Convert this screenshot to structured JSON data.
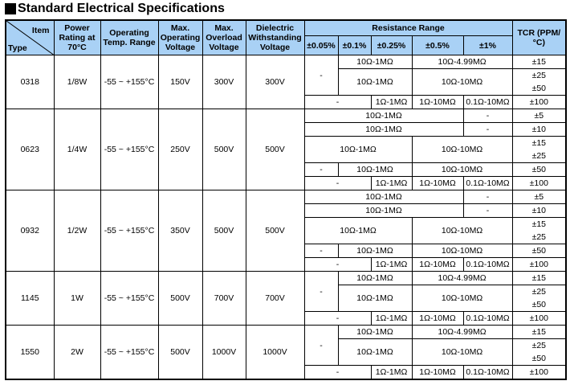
{
  "title": "Standard Electrical Specifications",
  "header": {
    "item": "Item",
    "type": "Type",
    "power": "Power Rating at 70°C",
    "temp": "Operating Temp. Range",
    "max_op": "Max. Operating Voltage",
    "max_ol": "Max. Overload Voltage",
    "dielectric": "Dielectric Withstanding Voltage",
    "resistance": "Resistance Range",
    "tolerances": [
      "±0.05%",
      "±0.1%",
      "±0.25%",
      "±0.5%",
      "±1%"
    ],
    "tcr": "TCR (PPM/°C)"
  },
  "colors": {
    "header_bg": "#a9d1f5"
  },
  "groups": [
    {
      "type": "0318",
      "power": "1/8W",
      "temp": "-55 ~ +155°C",
      "max_op": "150V",
      "max_ol": "300V",
      "dielectric": "300V",
      "layout": "A",
      "rows": [
        {
          "cells": [
            {
              "t": "-",
              "c": 1,
              "r": 2
            },
            {
              "t": "10Ω-1MΩ",
              "c": 2
            },
            {
              "t": "10Ω-4.99MΩ",
              "c": 2
            }
          ],
          "tcr": [
            "±15"
          ]
        },
        {
          "cells": [
            {
              "t": "10Ω-1MΩ",
              "c": 2
            },
            {
              "t": "10Ω-10MΩ",
              "c": 2
            }
          ],
          "tcr": [
            "±25",
            "±50"
          ]
        },
        {
          "cells": [
            {
              "t": "-",
              "c": 2
            },
            {
              "t": "1Ω-1MΩ",
              "c": 1
            },
            {
              "t": "1Ω-10MΩ",
              "c": 1
            },
            {
              "t": "0.1Ω-10MΩ",
              "c": 1
            }
          ],
          "tcr": [
            "±100"
          ]
        }
      ]
    },
    {
      "type": "0623",
      "power": "1/4W",
      "temp": "-55 ~ +155°C",
      "max_op": "250V",
      "max_ol": "500V",
      "dielectric": "500V",
      "layout": "B",
      "rows": [
        {
          "cells": [
            {
              "t": "10Ω-1MΩ",
              "c": 4
            },
            {
              "t": "-",
              "c": 1
            }
          ],
          "tcr": [
            "±5"
          ]
        },
        {
          "cells": [
            {
              "t": "10Ω-1MΩ",
              "c": 4
            },
            {
              "t": "-",
              "c": 1
            }
          ],
          "tcr": [
            "±10"
          ]
        },
        {
          "cells": [
            {
              "t": "10Ω-1MΩ",
              "c": 3
            },
            {
              "t": "10Ω-10MΩ",
              "c": 2
            }
          ],
          "tcr": [
            "±15",
            "±25"
          ]
        },
        {
          "cells": [
            {
              "t": "-",
              "c": 1
            },
            {
              "t": "10Ω-1MΩ",
              "c": 2
            },
            {
              "t": "10Ω-10MΩ",
              "c": 2
            }
          ],
          "tcr": [
            "±50"
          ]
        },
        {
          "cells": [
            {
              "t": "-",
              "c": 2
            },
            {
              "t": "1Ω-1MΩ",
              "c": 1
            },
            {
              "t": "1Ω-10MΩ",
              "c": 1
            },
            {
              "t": "0.1Ω-10MΩ",
              "c": 1
            }
          ],
          "tcr": [
            "±100"
          ]
        }
      ]
    },
    {
      "type": "0932",
      "power": "1/2W",
      "temp": "-55 ~ +155°C",
      "max_op": "350V",
      "max_ol": "500V",
      "dielectric": "500V",
      "layout": "B",
      "rows": [
        {
          "cells": [
            {
              "t": "10Ω-1MΩ",
              "c": 4
            },
            {
              "t": "-",
              "c": 1
            }
          ],
          "tcr": [
            "±5"
          ]
        },
        {
          "cells": [
            {
              "t": "10Ω-1MΩ",
              "c": 4
            },
            {
              "t": "-",
              "c": 1
            }
          ],
          "tcr": [
            "±10"
          ]
        },
        {
          "cells": [
            {
              "t": "10Ω-1MΩ",
              "c": 3
            },
            {
              "t": "10Ω-10MΩ",
              "c": 2
            }
          ],
          "tcr": [
            "±15",
            "±25"
          ]
        },
        {
          "cells": [
            {
              "t": "-",
              "c": 1
            },
            {
              "t": "10Ω-1MΩ",
              "c": 2
            },
            {
              "t": "10Ω-10MΩ",
              "c": 2
            }
          ],
          "tcr": [
            "±50"
          ]
        },
        {
          "cells": [
            {
              "t": "-",
              "c": 2
            },
            {
              "t": "1Ω-1MΩ",
              "c": 1
            },
            {
              "t": "1Ω-10MΩ",
              "c": 1
            },
            {
              "t": "0.1Ω-10MΩ",
              "c": 1
            }
          ],
          "tcr": [
            "±100"
          ]
        }
      ]
    },
    {
      "type": "1145",
      "power": "1W",
      "temp": "-55 ~ +155°C",
      "max_op": "500V",
      "max_ol": "700V",
      "dielectric": "700V",
      "layout": "A",
      "rows": [
        {
          "cells": [
            {
              "t": "-",
              "c": 1,
              "r": 2
            },
            {
              "t": "10Ω-1MΩ",
              "c": 2
            },
            {
              "t": "10Ω-4.99MΩ",
              "c": 2
            }
          ],
          "tcr": [
            "±15"
          ]
        },
        {
          "cells": [
            {
              "t": "10Ω-1MΩ",
              "c": 2
            },
            {
              "t": "10Ω-10MΩ",
              "c": 2
            }
          ],
          "tcr": [
            "±25",
            "±50"
          ]
        },
        {
          "cells": [
            {
              "t": "-",
              "c": 2
            },
            {
              "t": "1Ω-1MΩ",
              "c": 1
            },
            {
              "t": "1Ω-10MΩ",
              "c": 1
            },
            {
              "t": "0.1Ω-10MΩ",
              "c": 1
            }
          ],
          "tcr": [
            "±100"
          ]
        }
      ]
    },
    {
      "type": "1550",
      "power": "2W",
      "temp": "-55 ~ +155°C",
      "max_op": "500V",
      "max_ol": "1000V",
      "dielectric": "1000V",
      "layout": "A",
      "rows": [
        {
          "cells": [
            {
              "t": "-",
              "c": 1,
              "r": 2
            },
            {
              "t": "10Ω-1MΩ",
              "c": 2
            },
            {
              "t": "10Ω-4.99MΩ",
              "c": 2
            }
          ],
          "tcr": [
            "±15"
          ]
        },
        {
          "cells": [
            {
              "t": "10Ω-1MΩ",
              "c": 2
            },
            {
              "t": "10Ω-10MΩ",
              "c": 2
            }
          ],
          "tcr": [
            "±25",
            "±50"
          ]
        },
        {
          "cells": [
            {
              "t": "-",
              "c": 2
            },
            {
              "t": "1Ω-1MΩ",
              "c": 1
            },
            {
              "t": "1Ω-10MΩ",
              "c": 1
            },
            {
              "t": "0.1Ω-10MΩ",
              "c": 1
            }
          ],
          "tcr": [
            "±100"
          ]
        }
      ]
    }
  ]
}
